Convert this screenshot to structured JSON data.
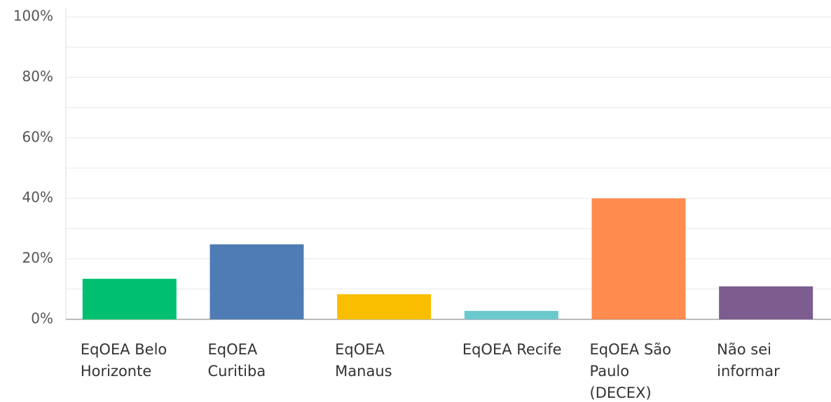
{
  "chart_data": {
    "type": "bar",
    "categories": [
      "EqOEA Belo Horizonte",
      "EqOEA Curitiba",
      "EqOEA Manaus",
      "EqOEA Recife",
      "EqOEA São Paulo (DECEX)",
      "Não sei informar"
    ],
    "values": [
      13.4,
      24.8,
      8.3,
      2.8,
      40.0,
      10.9
    ],
    "colors": [
      "#00bf6f",
      "#507cb6",
      "#f9be00",
      "#6bc8cd",
      "#ff8b4f",
      "#7d5c8f"
    ],
    "ylim": [
      0,
      100
    ],
    "yticks": [
      {
        "value": 0,
        "label": "0%"
      },
      {
        "value": 20,
        "label": "20%"
      },
      {
        "value": 40,
        "label": "40%"
      },
      {
        "value": 60,
        "label": "60%"
      },
      {
        "value": 80,
        "label": "80%"
      },
      {
        "value": 100,
        "label": "100%"
      }
    ],
    "minor_yticks": [
      10,
      30,
      50,
      70,
      90
    ],
    "grid": true
  }
}
